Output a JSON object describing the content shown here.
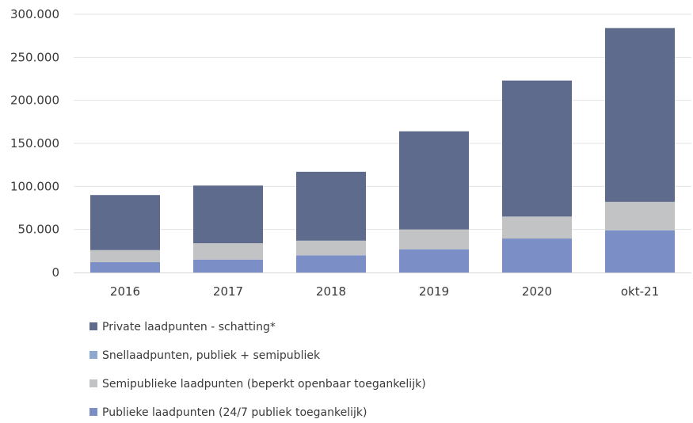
{
  "chart_data": {
    "type": "bar",
    "stacked": true,
    "categories": [
      "2016",
      "2017",
      "2018",
      "2019",
      "2020",
      "okt-21"
    ],
    "ylim": [
      0,
      300000
    ],
    "y_ticks": [
      0,
      50000,
      100000,
      150000,
      200000,
      250000,
      300000
    ],
    "y_tick_labels": [
      "0",
      "50.000",
      "100.000",
      "150.000",
      "200.000",
      "250.000",
      "300.000"
    ],
    "grid": "horizontal",
    "legend_position": "bottom",
    "title": "",
    "xlabel": "",
    "ylabel": "",
    "series": [
      {
        "name": "Publieke laadpunten (24/7 publiek toegankelijk)",
        "color": "#7b8fc6",
        "values": [
          12000,
          15000,
          20000,
          27000,
          39500,
          49000
        ]
      },
      {
        "name": "Snellaadpunten, publiek + semipubliek",
        "color": "#8ea9d0",
        "values": [
          0,
          0,
          0,
          0,
          0,
          0
        ]
      },
      {
        "name": "Semipublieke laadpunten (beperkt openbaar toegankelijk)",
        "color": "#c2c3c5",
        "values": [
          14000,
          19000,
          17000,
          23000,
          25500,
          33000
        ]
      },
      {
        "name": "Private laadpunten - schatting*",
        "color": "#5f6b8c",
        "values": [
          64000,
          67000,
          80000,
          114000,
          158000,
          202000
        ]
      }
    ],
    "legend_order": [
      "Private laadpunten - schatting*",
      "Snellaadpunten, publiek + semipubliek",
      "Semipublieke laadpunten (beperkt openbaar toegankelijk)",
      "Publieke laadpunten (24/7 publiek toegankelijk)"
    ]
  }
}
